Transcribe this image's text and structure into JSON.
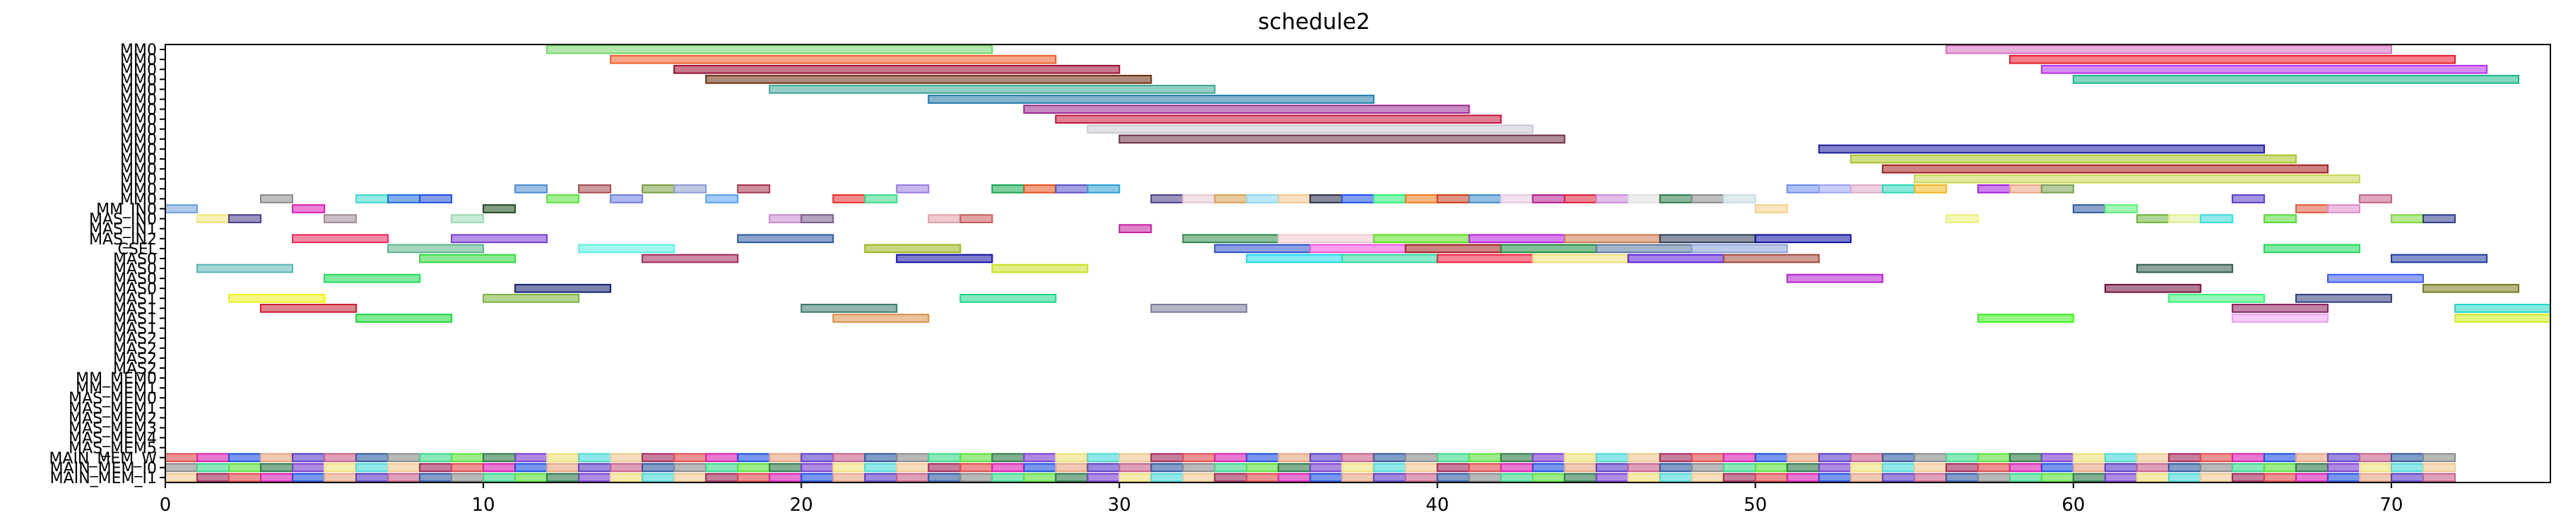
{
  "chart_data": {
    "type": "gantt",
    "title": "schedule2",
    "xlabel": "",
    "ylabel": "",
    "xlim": [
      0,
      75
    ],
    "ylim": [
      0,
      44
    ],
    "grid": false,
    "x_ticks": [
      0,
      10,
      20,
      30,
      40,
      50,
      60,
      70
    ],
    "y_ticks": [
      "MM0",
      "MM0",
      "MM0",
      "MM0",
      "MM0",
      "MM0",
      "MM0",
      "MM0",
      "MM0",
      "MM0",
      "MM0",
      "MM0",
      "MM0",
      "MM0",
      "MM0",
      "MM0",
      "MM_IN0",
      "MAS_IN0",
      "MAS_IN1",
      "MAS_IN2",
      "CSEL",
      "MAS0",
      "MAS0",
      "MAS0",
      "MAS0",
      "MAS1",
      "MAS1",
      "MAS1",
      "MAS1",
      "MAS2",
      "MAS2",
      "MAS2",
      "MAS2",
      "MM_MEM0",
      "MM_MEM1",
      "MAS_MEM0",
      "MAS_MEM1",
      "MAS_MEM2",
      "MAS_MEM3",
      "MAS_MEM4",
      "MAS_MEM5",
      "MAIN_MEM_W",
      "MAIN_MEM_I0",
      "MAIN_MEM_I1"
    ],
    "tasks": [
      {
        "row": 0,
        "start": 12,
        "end": 26,
        "color": "#72d56a"
      },
      {
        "row": 0,
        "start": 56,
        "end": 70,
        "color": "#d66dc0"
      },
      {
        "row": 1,
        "start": 14,
        "end": 28,
        "color": "#ef5b2a"
      },
      {
        "row": 1,
        "start": 58,
        "end": 72,
        "color": "#e8162a"
      },
      {
        "row": 2,
        "start": 16,
        "end": 30,
        "color": "#9b0a30"
      },
      {
        "row": 2,
        "start": 59,
        "end": 73,
        "color": "#b52df0"
      },
      {
        "row": 3,
        "start": 17,
        "end": 31,
        "color": "#6b2d0e"
      },
      {
        "row": 3,
        "start": 60,
        "end": 74,
        "color": "#1ab88a"
      },
      {
        "row": 4,
        "start": 19,
        "end": 33,
        "color": "#3fa596"
      },
      {
        "row": 5,
        "start": 24,
        "end": 38,
        "color": "#1f7aa6"
      },
      {
        "row": 6,
        "start": 27,
        "end": 41,
        "color": "#9b2a8e"
      },
      {
        "row": 7,
        "start": 28,
        "end": 42,
        "color": "#c2183c"
      },
      {
        "row": 8,
        "start": 29,
        "end": 43,
        "color": "#c8c8d4"
      },
      {
        "row": 9,
        "start": 30,
        "end": 44,
        "color": "#6e2f45"
      },
      {
        "row": 10,
        "start": 52,
        "end": 66,
        "color": "#1d1aa0"
      },
      {
        "row": 11,
        "start": 53,
        "end": 67,
        "color": "#a9c225"
      },
      {
        "row": 12,
        "start": 54,
        "end": 68,
        "color": "#a41d1d"
      },
      {
        "row": 13,
        "start": 55,
        "end": 69,
        "color": "#c9d651"
      },
      {
        "row": 14,
        "start": 11,
        "end": 12,
        "color": "#4d8ad1"
      },
      {
        "row": 14,
        "start": 13,
        "end": 14,
        "color": "#a54b4b"
      },
      {
        "row": 14,
        "start": 15,
        "end": 16,
        "color": "#7a9e3e"
      },
      {
        "row": 14,
        "start": 16,
        "end": 17,
        "color": "#8a9cd0"
      },
      {
        "row": 14,
        "start": 18,
        "end": 19,
        "color": "#a6344f"
      },
      {
        "row": 14,
        "start": 23,
        "end": 24,
        "color": "#9a7ae0"
      },
      {
        "row": 14,
        "start": 26,
        "end": 27,
        "color": "#18a850"
      },
      {
        "row": 14,
        "start": 27,
        "end": 28,
        "color": "#e8501e"
      },
      {
        "row": 14,
        "start": 28,
        "end": 29,
        "color": "#5a50c8"
      },
      {
        "row": 14,
        "start": 29,
        "end": 30,
        "color": "#2f9fd4"
      },
      {
        "row": 14,
        "start": 51,
        "end": 52,
        "color": "#6e8ef0"
      },
      {
        "row": 14,
        "start": 52,
        "end": 53,
        "color": "#9ba4f0"
      },
      {
        "row": 14,
        "start": 53,
        "end": 54,
        "color": "#e0aac8"
      },
      {
        "row": 14,
        "start": 54,
        "end": 55,
        "color": "#28d7b4"
      },
      {
        "row": 14,
        "start": 55,
        "end": 56,
        "color": "#f0b41e"
      },
      {
        "row": 14,
        "start": 57,
        "end": 58,
        "color": "#a41ee0"
      },
      {
        "row": 14,
        "start": 58,
        "end": 59,
        "color": "#e8a480"
      },
      {
        "row": 14,
        "start": 59,
        "end": 60,
        "color": "#78a050"
      },
      {
        "row": 15,
        "start": 3,
        "end": 4,
        "color": "#8a8a8a"
      },
      {
        "row": 15,
        "start": 6,
        "end": 7,
        "color": "#3cd8d0"
      },
      {
        "row": 15,
        "start": 7,
        "end": 8,
        "color": "#1e6ee0"
      },
      {
        "row": 15,
        "start": 8,
        "end": 9,
        "color": "#1e50e0"
      },
      {
        "row": 15,
        "start": 12,
        "end": 13,
        "color": "#5ae03c"
      },
      {
        "row": 15,
        "start": 14,
        "end": 15,
        "color": "#6e7ee0"
      },
      {
        "row": 15,
        "start": 17,
        "end": 18,
        "color": "#5aa0f0"
      },
      {
        "row": 15,
        "start": 21,
        "end": 22,
        "color": "#e82d2d"
      },
      {
        "row": 15,
        "start": 22,
        "end": 23,
        "color": "#3cd88a"
      },
      {
        "row": 15,
        "start": 31,
        "end": 32,
        "color": "#4a3c8a"
      },
      {
        "row": 15,
        "start": 32,
        "end": 33,
        "color": "#e8c8d0"
      },
      {
        "row": 15,
        "start": 33,
        "end": 34,
        "color": "#d8a050"
      },
      {
        "row": 15,
        "start": 34,
        "end": 35,
        "color": "#8ad8f0"
      },
      {
        "row": 15,
        "start": 35,
        "end": 36,
        "color": "#f0c890"
      },
      {
        "row": 15,
        "start": 36,
        "end": 37,
        "color": "#282c4a"
      },
      {
        "row": 15,
        "start": 37,
        "end": 38,
        "color": "#1e50f0"
      },
      {
        "row": 15,
        "start": 38,
        "end": 39,
        "color": "#2df07a"
      },
      {
        "row": 15,
        "start": 39,
        "end": 40,
        "color": "#f0781e"
      },
      {
        "row": 15,
        "start": 40,
        "end": 41,
        "color": "#c83c1e"
      },
      {
        "row": 15,
        "start": 41,
        "end": 42,
        "color": "#3c8ac8"
      },
      {
        "row": 15,
        "start": 42,
        "end": 43,
        "color": "#e8c8e0"
      },
      {
        "row": 15,
        "start": 43,
        "end": 44,
        "color": "#b41e8a"
      },
      {
        "row": 15,
        "start": 44,
        "end": 45,
        "color": "#e01e3c"
      },
      {
        "row": 15,
        "start": 45,
        "end": 46,
        "color": "#c88ad8"
      },
      {
        "row": 15,
        "start": 46,
        "end": 47,
        "color": "#e0e0e0"
      },
      {
        "row": 15,
        "start": 47,
        "end": 48,
        "color": "#2e7a4a"
      },
      {
        "row": 15,
        "start": 48,
        "end": 49,
        "color": "#8a8a8a"
      },
      {
        "row": 15,
        "start": 49,
        "end": 50,
        "color": "#c8dce0"
      },
      {
        "row": 15,
        "start": 65,
        "end": 66,
        "color": "#5a3cc8"
      },
      {
        "row": 15,
        "start": 69,
        "end": 70,
        "color": "#c8608a"
      },
      {
        "row": 16,
        "start": 0,
        "end": 1,
        "color": "#6e9cd8"
      },
      {
        "row": 16,
        "start": 4,
        "end": 5,
        "color": "#d81eb4"
      },
      {
        "row": 16,
        "start": 10,
        "end": 11,
        "color": "#1e4a1e"
      },
      {
        "row": 16,
        "start": 50,
        "end": 51,
        "color": "#f0d28a"
      },
      {
        "row": 16,
        "start": 60,
        "end": 61,
        "color": "#2e5aa0"
      },
      {
        "row": 16,
        "start": 61,
        "end": 62,
        "color": "#5af078"
      },
      {
        "row": 16,
        "start": 67,
        "end": 68,
        "color": "#e05a3c"
      },
      {
        "row": 16,
        "start": 68,
        "end": 69,
        "color": "#e08ac8"
      },
      {
        "row": 17,
        "start": 1,
        "end": 2,
        "color": "#f0e67a"
      },
      {
        "row": 17,
        "start": 2,
        "end": 3,
        "color": "#4a3c8a"
      },
      {
        "row": 17,
        "start": 5,
        "end": 6,
        "color": "#a08a96"
      },
      {
        "row": 17,
        "start": 9,
        "end": 10,
        "color": "#9ad8b4"
      },
      {
        "row": 17,
        "start": 19,
        "end": 20,
        "color": "#c88ad0"
      },
      {
        "row": 17,
        "start": 20,
        "end": 21,
        "color": "#7a5a8a"
      },
      {
        "row": 17,
        "start": 24,
        "end": 25,
        "color": "#e0a0a8"
      },
      {
        "row": 17,
        "start": 25,
        "end": 26,
        "color": "#c85a5a"
      },
      {
        "row": 17,
        "start": 56,
        "end": 57,
        "color": "#e8f07a"
      },
      {
        "row": 17,
        "start": 62,
        "end": 63,
        "color": "#6eb43c"
      },
      {
        "row": 17,
        "start": 63,
        "end": 64,
        "color": "#e0f096"
      },
      {
        "row": 17,
        "start": 64,
        "end": 65,
        "color": "#3cd8d8"
      },
      {
        "row": 17,
        "start": 66,
        "end": 67,
        "color": "#5ad83c"
      },
      {
        "row": 17,
        "start": 70,
        "end": 71,
        "color": "#7ad83c"
      },
      {
        "row": 17,
        "start": 71,
        "end": 72,
        "color": "#2e3c8a"
      },
      {
        "row": 18,
        "start": 30,
        "end": 31,
        "color": "#c81ea0"
      },
      {
        "row": 19,
        "start": 4,
        "end": 7,
        "color": "#e8285a"
      },
      {
        "row": 19,
        "start": 9,
        "end": 12,
        "color": "#7a3cd0"
      },
      {
        "row": 19,
        "start": 18,
        "end": 21,
        "color": "#2e5aa0"
      },
      {
        "row": 19,
        "start": 32,
        "end": 35,
        "color": "#2e8a4a"
      },
      {
        "row": 19,
        "start": 35,
        "end": 38,
        "color": "#f0c8d0"
      },
      {
        "row": 19,
        "start": 38,
        "end": 41,
        "color": "#5ae01e"
      },
      {
        "row": 19,
        "start": 41,
        "end": 44,
        "color": "#b41ee0"
      },
      {
        "row": 19,
        "start": 44,
        "end": 47,
        "color": "#c87a4a"
      },
      {
        "row": 19,
        "start": 47,
        "end": 50,
        "color": "#2e3c5a"
      },
      {
        "row": 19,
        "start": 50,
        "end": 53,
        "color": "#0e0ea0"
      },
      {
        "row": 20,
        "start": 7,
        "end": 10,
        "color": "#5ab48a"
      },
      {
        "row": 20,
        "start": 13,
        "end": 16,
        "color": "#5af0e0"
      },
      {
        "row": 20,
        "start": 22,
        "end": 25,
        "color": "#9ab41e"
      },
      {
        "row": 20,
        "start": 33,
        "end": 36,
        "color": "#2e50c8"
      },
      {
        "row": 20,
        "start": 36,
        "end": 39,
        "color": "#f050e0"
      },
      {
        "row": 20,
        "start": 39,
        "end": 42,
        "color": "#a01e1e"
      },
      {
        "row": 20,
        "start": 42,
        "end": 45,
        "color": "#1e8a3c"
      },
      {
        "row": 20,
        "start": 45,
        "end": 48,
        "color": "#5a78a0"
      },
      {
        "row": 20,
        "start": 48,
        "end": 51,
        "color": "#8aa0d8"
      },
      {
        "row": 20,
        "start": 66,
        "end": 69,
        "color": "#1ed85a"
      },
      {
        "row": 21,
        "start": 8,
        "end": 11,
        "color": "#2ed83c"
      },
      {
        "row": 21,
        "start": 15,
        "end": 18,
        "color": "#a0285a"
      },
      {
        "row": 21,
        "start": 23,
        "end": 26,
        "color": "#0e0ea0"
      },
      {
        "row": 21,
        "start": 34,
        "end": 37,
        "color": "#1ed8f0"
      },
      {
        "row": 21,
        "start": 37,
        "end": 40,
        "color": "#2ed8a0"
      },
      {
        "row": 21,
        "start": 40,
        "end": 43,
        "color": "#f01e3c"
      },
      {
        "row": 21,
        "start": 43,
        "end": 46,
        "color": "#f0e07a"
      },
      {
        "row": 21,
        "start": 46,
        "end": 49,
        "color": "#5a1ed8"
      },
      {
        "row": 21,
        "start": 49,
        "end": 52,
        "color": "#a04a3c"
      },
      {
        "row": 21,
        "start": 70,
        "end": 73,
        "color": "#1e3ca0"
      },
      {
        "row": 22,
        "start": 1,
        "end": 4,
        "color": "#5ab4b4"
      },
      {
        "row": 22,
        "start": 26,
        "end": 29,
        "color": "#c8e01e"
      },
      {
        "row": 22,
        "start": 62,
        "end": 65,
        "color": "#2e5a4a"
      },
      {
        "row": 23,
        "start": 5,
        "end": 8,
        "color": "#1ed85a"
      },
      {
        "row": 23,
        "start": 51,
        "end": 54,
        "color": "#b41ed0"
      },
      {
        "row": 23,
        "start": 68,
        "end": 71,
        "color": "#3c5af0"
      },
      {
        "row": 24,
        "start": 11,
        "end": 14,
        "color": "#0e1e6e"
      },
      {
        "row": 24,
        "start": 61,
        "end": 64,
        "color": "#6e0e3c"
      },
      {
        "row": 24,
        "start": 71,
        "end": 74,
        "color": "#7a7a1e"
      },
      {
        "row": 25,
        "start": 2,
        "end": 5,
        "color": "#f0f01e"
      },
      {
        "row": 25,
        "start": 10,
        "end": 13,
        "color": "#7ab43c"
      },
      {
        "row": 25,
        "start": 25,
        "end": 28,
        "color": "#1ed88a"
      },
      {
        "row": 25,
        "start": 63,
        "end": 66,
        "color": "#3cf07a"
      },
      {
        "row": 25,
        "start": 67,
        "end": 70,
        "color": "#2e3c7a"
      },
      {
        "row": 26,
        "start": 3,
        "end": 6,
        "color": "#c81e2e"
      },
      {
        "row": 26,
        "start": 20,
        "end": 23,
        "color": "#3c7a6e"
      },
      {
        "row": 26,
        "start": 31,
        "end": 34,
        "color": "#7a7a9a"
      },
      {
        "row": 26,
        "start": 65,
        "end": 68,
        "color": "#8a1e5a"
      },
      {
        "row": 26,
        "start": 72,
        "end": 75,
        "color": "#1ed8c8"
      },
      {
        "row": 27,
        "start": 6,
        "end": 9,
        "color": "#1ed83c"
      },
      {
        "row": 27,
        "start": 21,
        "end": 24,
        "color": "#d8904a"
      },
      {
        "row": 27,
        "start": 57,
        "end": 60,
        "color": "#3cf01e"
      },
      {
        "row": 27,
        "start": 65,
        "end": 68,
        "color": "#f0a0f0"
      },
      {
        "row": 27,
        "start": 72,
        "end": 75,
        "color": "#d0f01e"
      }
    ]
  }
}
